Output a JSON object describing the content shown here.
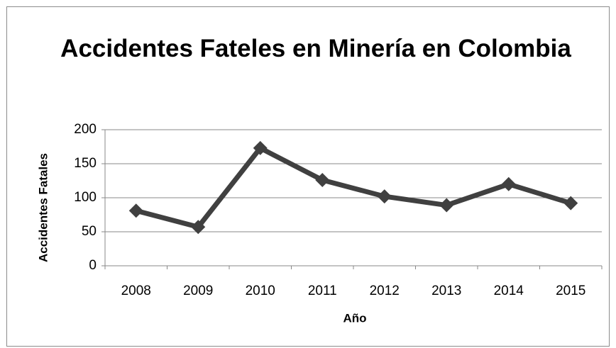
{
  "chart_data": {
    "type": "line",
    "title": "Accidentes Fateles en Minería en Colombia",
    "xlabel": "Año",
    "ylabel": "Accidentes Fatales",
    "categories": [
      "2008",
      "2009",
      "2010",
      "2011",
      "2012",
      "2013",
      "2014",
      "2015"
    ],
    "values": [
      81,
      57,
      173,
      126,
      102,
      89,
      120,
      92
    ],
    "color": "#404040",
    "ylim": [
      0,
      200
    ],
    "yticks": [
      0,
      50,
      100,
      150,
      200
    ],
    "grid": true
  }
}
